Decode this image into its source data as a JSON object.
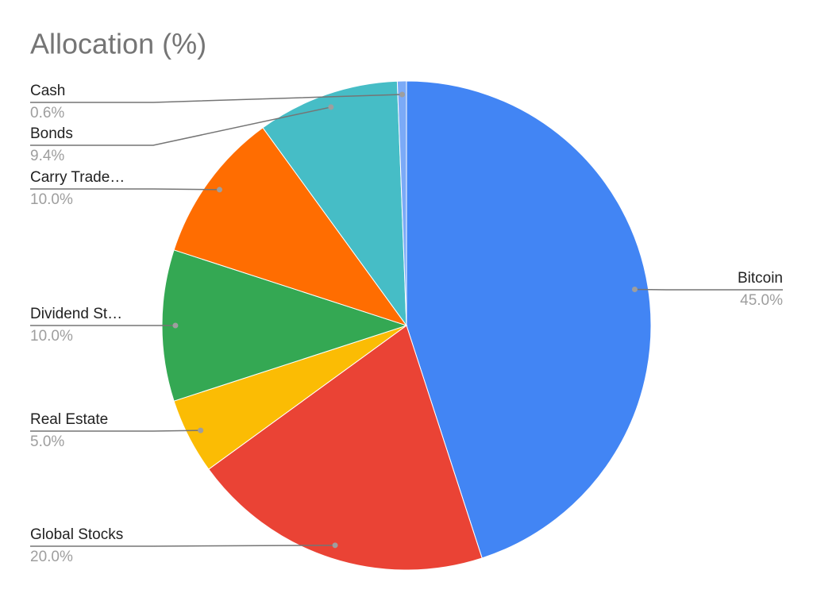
{
  "chart_data": {
    "type": "pie",
    "title": "Allocation (%)",
    "categories": [
      "Bitcoin",
      "Global Stocks",
      "Real Estate",
      "Dividend St…",
      "Carry Trade…",
      "Bonds",
      "Cash"
    ],
    "values": [
      45.0,
      20.0,
      5.0,
      10.0,
      10.0,
      9.4,
      0.6
    ],
    "value_labels": [
      "45.0%",
      "20.0%",
      "5.0%",
      "10.0%",
      "10.0%",
      "9.4%",
      "0.6%"
    ],
    "colors": [
      "#4285f4",
      "#ea4335",
      "#fbbc04",
      "#34a853",
      "#ff6d01",
      "#46bdc6",
      "#7baaf7"
    ]
  }
}
